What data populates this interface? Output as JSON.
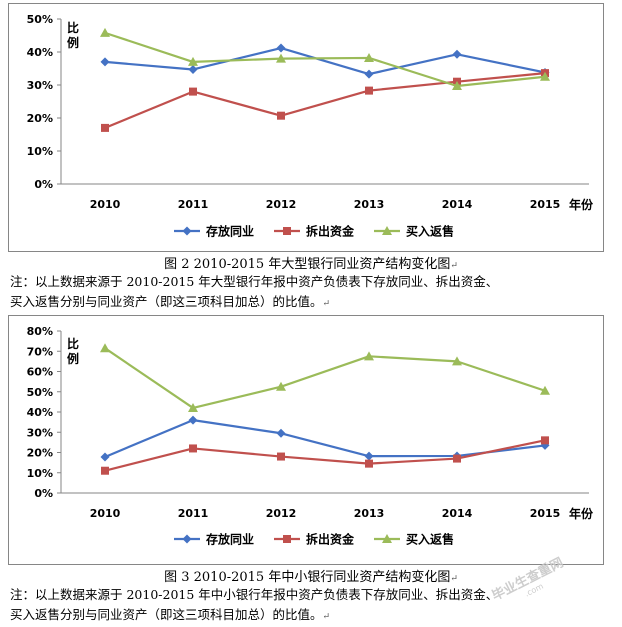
{
  "chart_data": [
    {
      "type": "line",
      "categories": [
        "2010",
        "2011",
        "2012",
        "2013",
        "2014",
        "2015"
      ],
      "xlabel": "年份",
      "ylabel": "比例",
      "ylim": [
        0,
        50
      ],
      "yticks": [
        "0%",
        "10%",
        "20%",
        "30%",
        "40%",
        "50%"
      ],
      "series": [
        {
          "name": "存放同业",
          "color": "#4472C4",
          "marker": "diamond",
          "values": [
            37,
            34.7,
            41.2,
            33.3,
            39.3,
            33.8
          ]
        },
        {
          "name": "拆出资金",
          "color": "#C0504D",
          "marker": "square",
          "values": [
            17,
            28,
            20.7,
            28.3,
            31,
            33.6
          ]
        },
        {
          "name": "买入返售",
          "color": "#9BBB59",
          "marker": "triangle",
          "values": [
            45.8,
            37,
            38,
            38.2,
            29.7,
            32.5
          ]
        }
      ],
      "legend": "bottom",
      "grid": false
    },
    {
      "type": "line",
      "categories": [
        "2010",
        "2011",
        "2012",
        "2013",
        "2014",
        "2015"
      ],
      "xlabel": "年份",
      "ylabel": "比例",
      "ylim": [
        0,
        80
      ],
      "yticks": [
        "0%",
        "10%",
        "20%",
        "30%",
        "40%",
        "50%",
        "60%",
        "70%",
        "80%"
      ],
      "series": [
        {
          "name": "存放同业",
          "color": "#4472C4",
          "marker": "diamond",
          "values": [
            17.8,
            36,
            29.5,
            18.2,
            18.3,
            23.5
          ]
        },
        {
          "name": "拆出资金",
          "color": "#C0504D",
          "marker": "square",
          "values": [
            11,
            22,
            18,
            14.5,
            17,
            26
          ]
        },
        {
          "name": "买入返售",
          "color": "#9BBB59",
          "marker": "triangle",
          "values": [
            71.5,
            42,
            52.5,
            67.5,
            65,
            50.5
          ]
        }
      ],
      "legend": "bottom",
      "grid": false
    }
  ],
  "captions": {
    "fig2": "图 2 2010-2015 年大型银行同业资产结构变化图",
    "note2_line1": "注：以上数据来源于 2010-2015 年大型银行年报中资产负债表下存放同业、拆出资金、",
    "note2_line2": "买入返售分别与同业资产（即这三项科目加总）的比值。",
    "fig3": "图 3 2010-2015 年中小银行同业资产结构变化图",
    "note3_line1": "注：以上数据来源于 2010-2015 年中小银行年报中资产负债表下存放同业、拆出资金、",
    "note3_line2": "买入返售分别与同业资产（即这三项科目加总）的比值。"
  },
  "watermark": {
    "main": "毕业生查重网",
    "sub": ".com"
  }
}
